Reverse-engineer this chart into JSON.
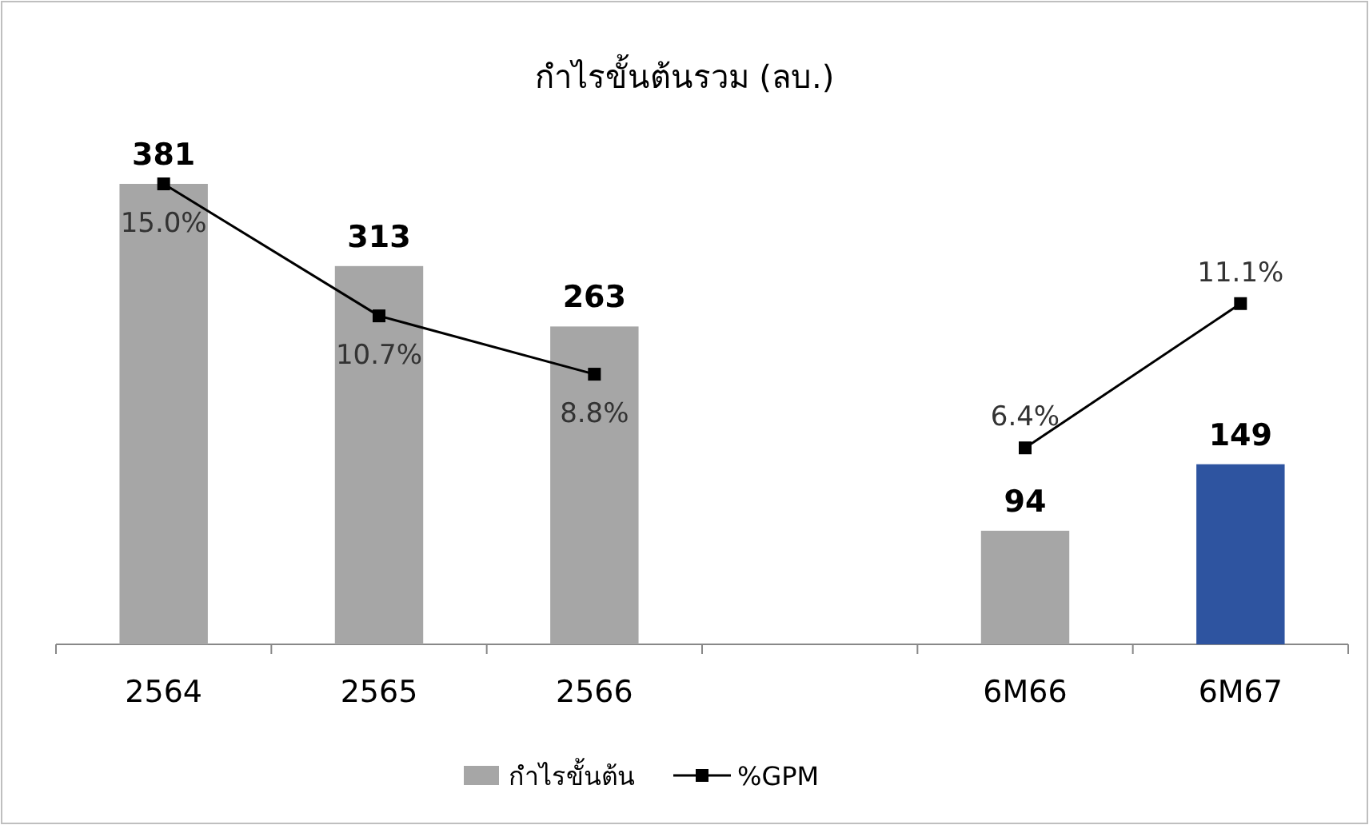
{
  "chart_data": {
    "type": "bar",
    "title": "กำไรขั้นต้นรวม (ลบ.)",
    "categories": [
      "2564",
      "2565",
      "2566",
      null,
      "6M66",
      "6M67"
    ],
    "data_labels": true,
    "legend": "bottom",
    "series": [
      {
        "name": "กำไรขั้นต้น",
        "colors": [
          "#a6a6a6",
          "#a6a6a6",
          "#a6a6a6",
          null,
          "#a6a6a6",
          "#2e54a0"
        ],
        "values": [
          381,
          313,
          263,
          null,
          94,
          149
        ]
      },
      {
        "name": "%GPM",
        "type": "line",
        "axis": "y2",
        "color": "#000000",
        "marker": "square",
        "values": [
          15.0,
          10.7,
          8.8,
          null,
          6.4,
          11.1
        ],
        "value_labels": [
          "15.0%",
          "10.7%",
          "8.8%",
          null,
          "6.4%",
          "11.1%"
        ]
      }
    ]
  }
}
